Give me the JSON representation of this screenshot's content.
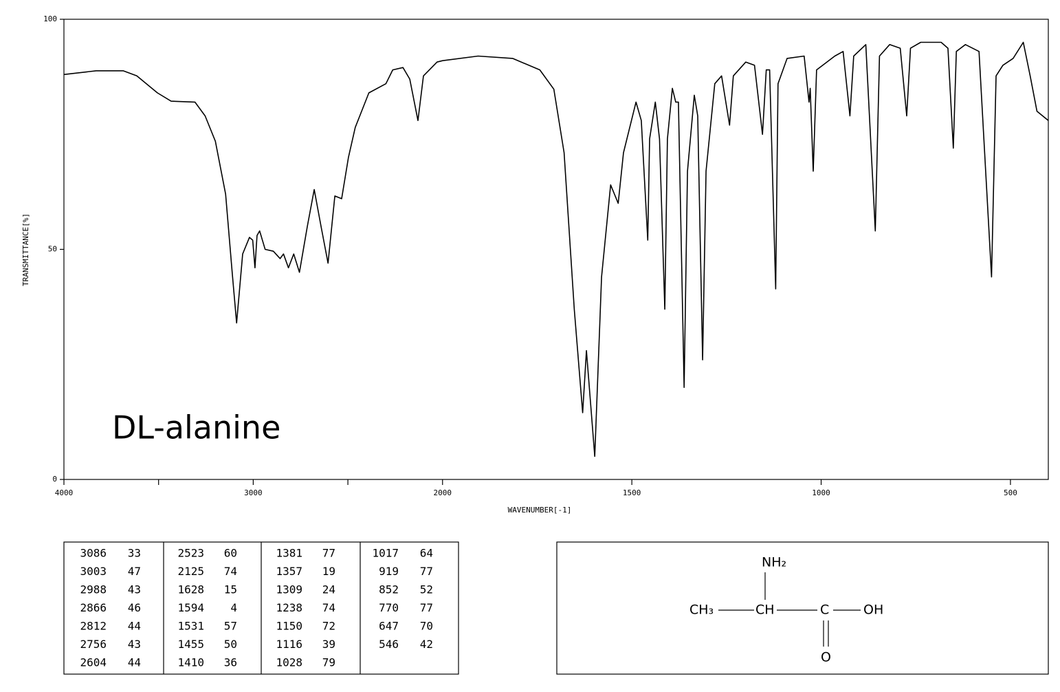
{
  "chart_data": {
    "type": "line",
    "annotation": "DL-alanine",
    "x_label": "WAVENUMBER[-1]",
    "y_label": "TRANSMITTANCE[%]",
    "x": [
      4000,
      3830,
      3687,
      3615,
      3506,
      3434,
      3308,
      3254,
      3200,
      3146,
      3110,
      3088,
      3056,
      3020,
      3003,
      2991,
      2980,
      2966,
      2937,
      2894,
      2858,
      2840,
      2814,
      2786,
      2756,
      2714,
      2678,
      2642,
      2605,
      2569,
      2533,
      2497,
      2461,
      2389,
      2299,
      2263,
      2209,
      2173,
      2130,
      2101,
      2029,
      2000,
      1906,
      1815,
      1743,
      1706,
      1679,
      1652,
      1630,
      1620,
      1598,
      1580,
      1556,
      1536,
      1522,
      1489,
      1475,
      1458,
      1453,
      1438,
      1427,
      1413,
      1406,
      1393,
      1384,
      1377,
      1362,
      1353,
      1335,
      1326,
      1313,
      1304,
      1281,
      1263,
      1242,
      1232,
      1199,
      1176,
      1155,
      1145,
      1136,
      1120,
      1114,
      1090,
      1045,
      1032,
      1029,
      1021,
      1012,
      964,
      942,
      924,
      914,
      882,
      857,
      846,
      819,
      791,
      774,
      764,
      737,
      683,
      665,
      651,
      643,
      619,
      583,
      550,
      538,
      520,
      493,
      466,
      448,
      430,
      400
    ],
    "values": [
      88,
      88.8,
      88.8,
      87.7,
      84,
      82.2,
      82,
      79,
      73.5,
      62,
      44.4,
      34,
      49,
      52.6,
      52,
      46,
      53,
      54,
      50,
      49.6,
      48,
      49,
      46,
      49,
      45,
      55,
      63,
      55,
      47,
      61.6,
      61,
      70,
      76.5,
      84,
      86,
      89,
      89.5,
      87,
      78,
      87.7,
      90.7,
      91,
      92,
      91.5,
      89,
      84.8,
      71,
      37,
      14.5,
      28,
      5,
      44,
      64,
      60,
      71,
      82,
      78,
      52,
      74,
      82,
      74,
      37,
      74,
      85,
      82,
      82,
      20,
      67,
      83.5,
      79,
      26,
      67,
      86,
      87.7,
      77,
      87.7,
      90.7,
      90,
      75,
      89,
      89,
      41.4,
      86,
      91.5,
      92,
      82,
      85,
      67,
      89,
      92,
      93,
      79,
      92,
      94.5,
      54,
      92,
      94.5,
      93.7,
      79,
      93.7,
      95,
      95,
      93.7,
      72,
      93,
      94.5,
      93,
      44,
      87.7,
      90,
      91.5,
      95,
      87.7,
      80,
      78
    ],
    "color": "#000000",
    "xlim": [
      4000,
      400
    ],
    "x_scale_break": 2000,
    "x_scale_factor": 2,
    "xticks": [
      4000,
      3000,
      2000,
      1500,
      1000,
      500
    ],
    "xminorticks": [
      3500,
      2500
    ],
    "ylim": [
      0,
      100
    ],
    "yticks": [
      0,
      50,
      100
    ],
    "peaks": {
      "x": [
        3086,
        3003,
        2988,
        2866,
        2812,
        2756,
        2604,
        2523,
        2125,
        1628,
        1594,
        1531,
        1455,
        1410,
        1381,
        1357,
        1309,
        1238,
        1150,
        1116,
        1028,
        1017,
        919,
        852,
        770,
        647,
        546
      ],
      "values": [
        33,
        47,
        43,
        46,
        44,
        43,
        44,
        60,
        74,
        15,
        4,
        57,
        50,
        36,
        77,
        19,
        24,
        74,
        72,
        39,
        79,
        64,
        77,
        52,
        77,
        70,
        42
      ]
    }
  },
  "structure": {
    "nh2": "NH₂",
    "ch3": "CH₃",
    "ch": "CH",
    "c": "C",
    "oh": "OH",
    "o": "O"
  }
}
